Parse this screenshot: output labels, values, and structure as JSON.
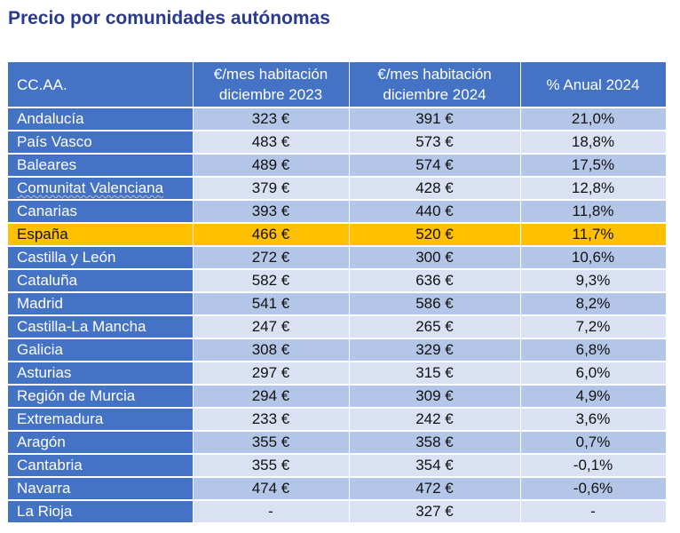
{
  "title": "Precio por comunidades autónomas",
  "colors": {
    "title": "#2a3a8c",
    "header_bg": "#4472c4",
    "row_band_dark": "#b4c6e7",
    "row_band_light": "#d9e1f2",
    "highlight": "#ffc000"
  },
  "table": {
    "headers": [
      "CC.AA.",
      [
        "€/mes habitación",
        "diciembre 2023"
      ],
      [
        "€/mes habitación",
        "diciembre 2024"
      ],
      "% Anual 2024"
    ],
    "rows": [
      [
        "Andalucía",
        "323 €",
        "391 €",
        "21,0%"
      ],
      [
        "País Vasco",
        "483 €",
        "573 €",
        "18,8%"
      ],
      [
        "Baleares",
        "489 €",
        "574 €",
        "17,5%"
      ],
      [
        "Comunitat Valenciana",
        "379 €",
        "428 €",
        "12,8%"
      ],
      [
        "Canarias",
        "393 €",
        "440 €",
        "11,8%"
      ],
      [
        "España",
        "466 €",
        "520 €",
        "11,7%"
      ],
      [
        "Castilla y León",
        "272 €",
        "300 €",
        "10,6%"
      ],
      [
        "Cataluña",
        "582 €",
        "636 €",
        "9,3%"
      ],
      [
        "Madrid",
        "541 €",
        "586 €",
        "8,2%"
      ],
      [
        "Castilla-La Mancha",
        "247 €",
        "265 €",
        "7,2%"
      ],
      [
        "Galicia",
        "308 €",
        "329 €",
        "6,8%"
      ],
      [
        "Asturias",
        "297 €",
        "315 €",
        "6,0%"
      ],
      [
        "Región de Murcia",
        "294 €",
        "309 €",
        "4,9%"
      ],
      [
        "Extremadura",
        "233 €",
        "242 €",
        "3,6%"
      ],
      [
        "Aragón",
        "355 €",
        "358 €",
        "0,7%"
      ],
      [
        "Cantabria",
        "355 €",
        "354 €",
        "-0,1%"
      ],
      [
        "Navarra",
        "474 €",
        "472 €",
        "-0,6%"
      ],
      [
        "La Rioja",
        "-",
        "327 €",
        "-"
      ]
    ]
  }
}
